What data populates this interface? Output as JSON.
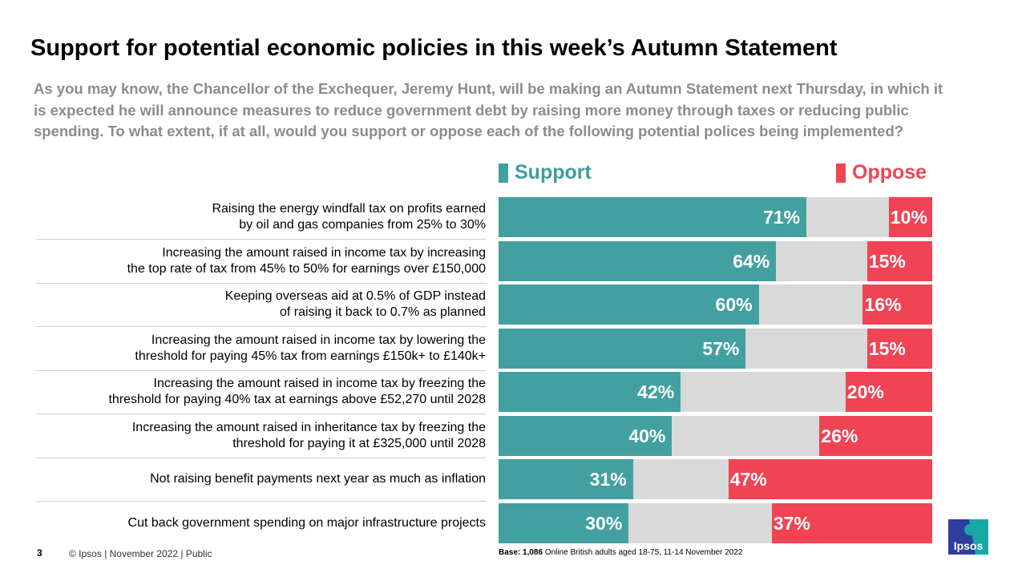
{
  "title": "Support for potential economic policies in this week’s Autumn Statement",
  "question": "As you may know, the Chancellor of the Exchequer, Jeremy Hunt, will be making an Autumn Statement next Thursday, in which it is expected he will announce measures to reduce government debt by raising more money through taxes or reducing public spending. To what extent, if at all, would you support or oppose each of the following potential polices being implemented?",
  "colors": {
    "support": "#43a0a0",
    "neutral": "#d9d9d9",
    "oppose": "#f04455"
  },
  "chart_data": {
    "type": "bar",
    "orientation": "horizontal-stacked",
    "xlim": [
      0,
      100
    ],
    "legend": "top",
    "categories": [
      "Raising the energy windfall tax on profits earned\nby oil and gas companies from 25% to 30%",
      "Increasing the amount raised in income tax by increasing\nthe top rate of tax from 45% to 50% for earnings over £150,000",
      "Keeping overseas aid at 0.5% of GDP instead\nof raising it back to 0.7% as planned",
      "Increasing the amount raised in income tax by lowering the\nthreshold for paying 45% tax from earnings £150k+ to £140k+",
      "Increasing the amount raised in income tax by freezing the\nthreshold for paying 40% tax at earnings above £52,270 until 2028",
      "Increasing the amount raised in inheritance tax by freezing the\nthreshold for paying it at £325,000 until 2028",
      "Not raising benefit payments next year as much as inflation",
      "Cut back government spending on major infrastructure projects"
    ],
    "series": [
      {
        "name": "Support",
        "values": [
          71,
          64,
          60,
          57,
          42,
          40,
          31,
          30
        ]
      },
      {
        "name": "Oppose",
        "values": [
          10,
          15,
          16,
          15,
          20,
          26,
          47,
          37
        ]
      }
    ],
    "labels": {
      "support": [
        "71%",
        "64%",
        "60%",
        "57%",
        "42%",
        "40%",
        "31%",
        "30%"
      ],
      "oppose": [
        "10%",
        "15%",
        "16%",
        "15%",
        "20%",
        "26%",
        "47%",
        "37%"
      ]
    }
  },
  "footer": {
    "page": "3",
    "copyright": "© Ipsos | November  2022 | Public",
    "base_bold": "Base: 1,086",
    "base_rest": " Online British adults aged 18-75, 11-14 November 2022"
  },
  "logo": {
    "text": "Ipsos"
  }
}
